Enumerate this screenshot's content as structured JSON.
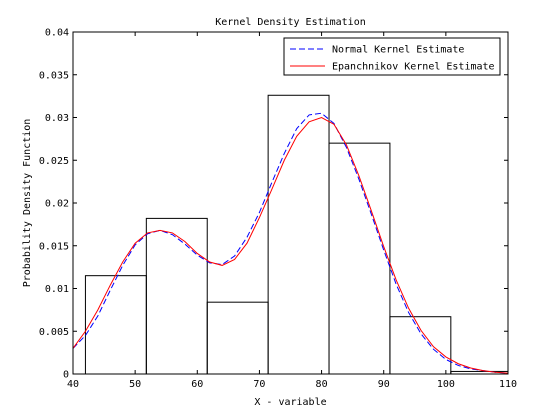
{
  "chart_data": {
    "type": "bar",
    "title": "Kernel Density Estimation",
    "xlabel": "X - variable",
    "ylabel": "Probability Density Function",
    "xlim": [
      40,
      110
    ],
    "ylim": [
      0,
      0.04
    ],
    "x_ticks": [
      "40",
      "50",
      "60",
      "70",
      "80",
      "90",
      "100",
      "110"
    ],
    "y_ticks": [
      "0",
      "0.005",
      "0.01",
      "0.015",
      "0.02",
      "0.025",
      "0.03",
      "0.035",
      "0.04"
    ],
    "grid": false,
    "legend_position": "top-right",
    "histogram": {
      "bins": [
        {
          "x0": 42,
          "x1": 51.8,
          "value": 0.0115
        },
        {
          "x0": 51.8,
          "x1": 61.6,
          "value": 0.0182
        },
        {
          "x0": 61.6,
          "x1": 71.4,
          "value": 0.0084
        },
        {
          "x0": 71.4,
          "x1": 81.2,
          "value": 0.0326
        },
        {
          "x0": 81.2,
          "x1": 91.0,
          "value": 0.027
        },
        {
          "x0": 91.0,
          "x1": 100.8,
          "value": 0.0067
        },
        {
          "x0": 100.8,
          "x1": 110.6,
          "value": 0.0003
        }
      ],
      "edge_color": "#000000"
    },
    "series": [
      {
        "name": "Normal Kernel Estimate",
        "style": "dashed",
        "color": "#0000ff",
        "x": [
          40,
          42,
          44,
          46,
          48,
          50,
          52,
          54,
          56,
          58,
          60,
          62,
          64,
          66,
          68,
          70,
          72,
          74,
          76,
          78,
          80,
          82,
          84,
          86,
          88,
          90,
          92,
          94,
          96,
          98,
          100,
          102,
          104,
          106,
          108,
          110
        ],
        "y": [
          0.003,
          0.0045,
          0.0068,
          0.0098,
          0.0127,
          0.0151,
          0.0164,
          0.0168,
          0.0163,
          0.0152,
          0.0139,
          0.013,
          0.0128,
          0.0138,
          0.016,
          0.0189,
          0.0224,
          0.0258,
          0.0287,
          0.0303,
          0.0305,
          0.0293,
          0.0265,
          0.0228,
          0.0187,
          0.0145,
          0.0105,
          0.0072,
          0.0047,
          0.0029,
          0.0017,
          0.001,
          0.0006,
          0.0004,
          0.0002,
          0.0001
        ]
      },
      {
        "name": "Epanchnikov Kernel Estimate",
        "style": "solid",
        "color": "#ff0000",
        "x": [
          40,
          42,
          44,
          46,
          48,
          50,
          52,
          54,
          56,
          58,
          60,
          62,
          64,
          66,
          68,
          70,
          72,
          74,
          76,
          78,
          80,
          82,
          84,
          86,
          88,
          90,
          92,
          94,
          96,
          98,
          100,
          102,
          104,
          106,
          108,
          110
        ],
        "y": [
          0.003,
          0.005,
          0.0075,
          0.0104,
          0.0131,
          0.0153,
          0.0165,
          0.0168,
          0.0165,
          0.0155,
          0.0141,
          0.0131,
          0.0127,
          0.0134,
          0.0153,
          0.0183,
          0.0216,
          0.025,
          0.0278,
          0.0295,
          0.03,
          0.0292,
          0.0268,
          0.0232,
          0.0191,
          0.0149,
          0.011,
          0.0077,
          0.0051,
          0.0032,
          0.002,
          0.0012,
          0.0007,
          0.0004,
          0.0002,
          0.0001
        ]
      }
    ]
  }
}
